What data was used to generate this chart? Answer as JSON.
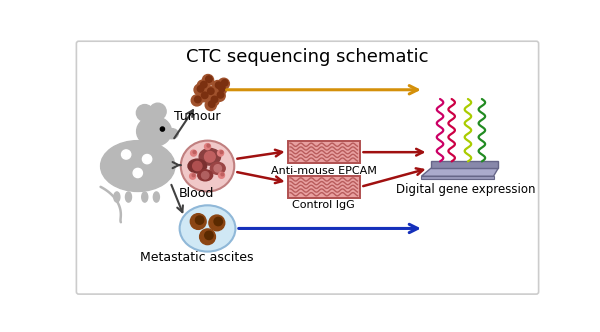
{
  "title": "CTC sequencing schematic",
  "title_fontsize": 13,
  "background_color": "#ffffff",
  "border_color": "#cccccc",
  "labels": {
    "tumour": "Tumour",
    "blood": "Blood",
    "metastatic": "Metastatic ascites",
    "anti_mouse": "Anti-mouse EPCAM",
    "control": "Control IgG",
    "digital": "Digital gene expression"
  },
  "arrow_colors": {
    "orange": "#D4900A",
    "red": "#A01010",
    "blue": "#1530BB",
    "dark": "#404040"
  },
  "chip_color_fill": "#E8A0A0",
  "chip_color_border": "#B05050",
  "mouse_color": "#B8B8B8",
  "tumour_color": "#8B4513",
  "blood_bg": "#F0C8C8",
  "ascites_bg": "#D0E8F5",
  "platform_color": "#AAAACC"
}
